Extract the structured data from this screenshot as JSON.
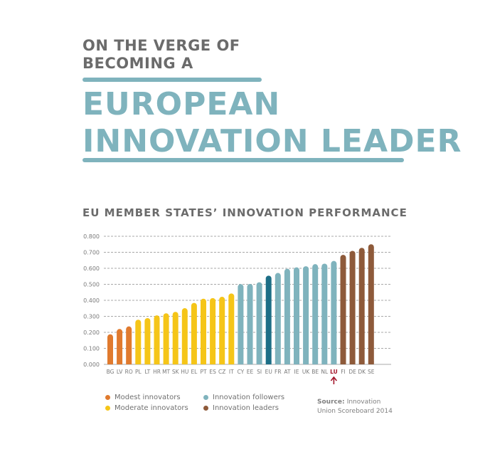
{
  "header": {
    "pre_line1": "ON THE VERGE OF",
    "pre_line2": "BECOMING A",
    "title_line1": "EUROPEAN",
    "title_line2": "INNOVATION LEADER",
    "accent_color": "#7fb3bd"
  },
  "chart_data": {
    "type": "bar",
    "title": "EU MEMBER STATES’ INNOVATION PERFORMANCE",
    "categories": [
      "BG",
      "LV",
      "RO",
      "PL",
      "LT",
      "HR",
      "MT",
      "SK",
      "HU",
      "EL",
      "PT",
      "ES",
      "CZ",
      "IT",
      "CY",
      "EE",
      "SI",
      "EU",
      "FR",
      "AT",
      "IE",
      "UK",
      "BE",
      "NL",
      "LU",
      "FI",
      "DE",
      "DK",
      "SE"
    ],
    "values": [
      0.188,
      0.221,
      0.237,
      0.279,
      0.289,
      0.306,
      0.319,
      0.328,
      0.351,
      0.384,
      0.41,
      0.414,
      0.422,
      0.443,
      0.501,
      0.502,
      0.513,
      0.554,
      0.571,
      0.597,
      0.606,
      0.613,
      0.626,
      0.629,
      0.646,
      0.684,
      0.709,
      0.728,
      0.75
    ],
    "groups": [
      "modest",
      "modest",
      "modest",
      "moderate",
      "moderate",
      "moderate",
      "moderate",
      "moderate",
      "moderate",
      "moderate",
      "moderate",
      "moderate",
      "moderate",
      "moderate",
      "follower",
      "follower",
      "follower",
      "eu",
      "follower",
      "follower",
      "follower",
      "follower",
      "follower",
      "follower",
      "follower",
      "leader",
      "leader",
      "leader",
      "leader"
    ],
    "ylim": [
      0,
      0.8
    ],
    "yticks": [
      "0.000",
      "0.100",
      "0.200",
      "0.300",
      "0.400",
      "0.500",
      "0.600",
      "0.700",
      "0.800"
    ],
    "grid": true,
    "highlight_category": "LU",
    "colors": {
      "modest": "#e07a2e",
      "moderate": "#f5c518",
      "follower": "#7fb3bd",
      "eu": "#1d6e86",
      "leader": "#8e5a3a",
      "highlight": "#a3152a"
    }
  },
  "legend": {
    "modest": "Modest innovators",
    "moderate": "Moderate innovators",
    "follower": "Innovation followers",
    "leader": "Innovation leaders"
  },
  "source": {
    "label": "Source:",
    "line1": "Innovation",
    "line2": "Union Scoreboard 2014"
  }
}
